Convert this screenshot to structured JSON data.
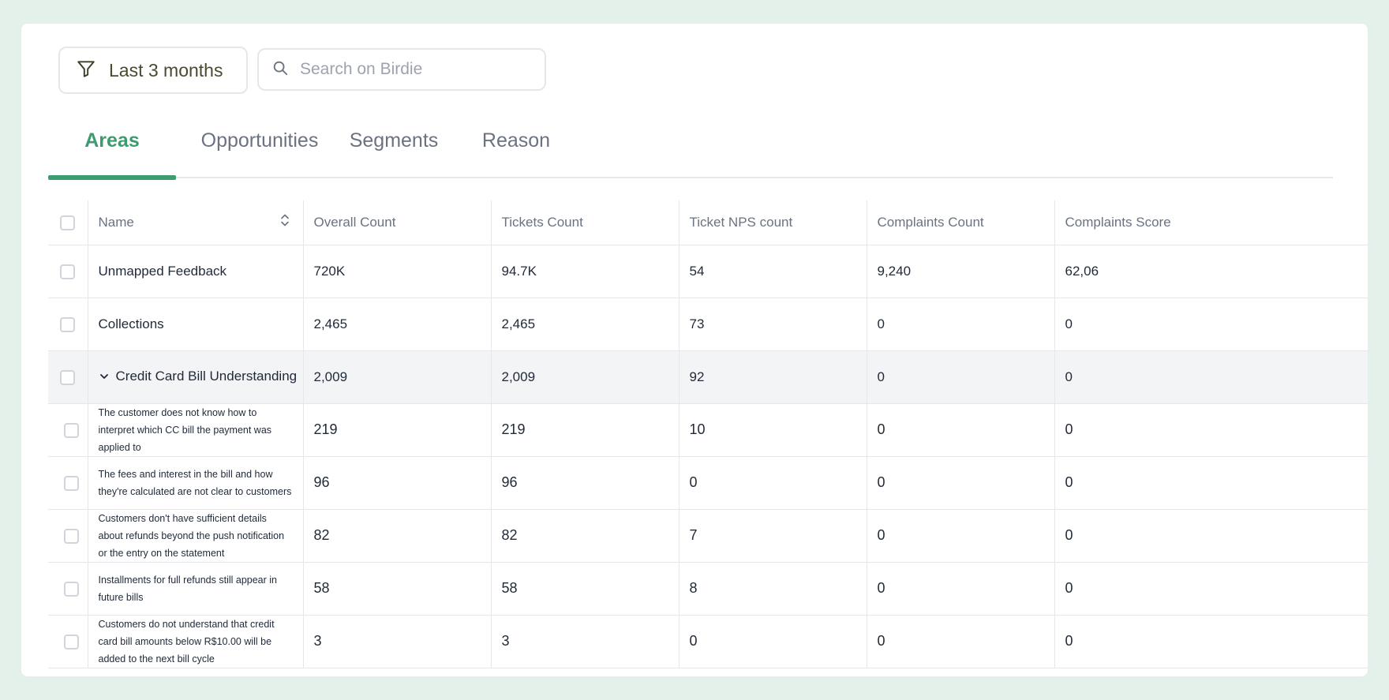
{
  "filter": {
    "label": "Last 3 months"
  },
  "search": {
    "placeholder": "Search on Birdie"
  },
  "tabs": [
    {
      "label": "Areas",
      "active": true
    },
    {
      "label": "Opportunities",
      "active": false
    },
    {
      "label": "Segments",
      "active": false
    },
    {
      "label": "Reason",
      "active": false
    }
  ],
  "colors": {
    "accent": "#3d9b70",
    "background": "#e3f1ea",
    "border": "#e5e7eb",
    "row_highlight": "#f3f4f6"
  },
  "table": {
    "headers": {
      "name": "Name",
      "overall": "Overall Count",
      "tickets": "Tickets Count",
      "nps": "Ticket NPS count",
      "complaints": "Complaints Count",
      "score": "Complaints Score"
    },
    "rows": [
      {
        "name": "Unmapped Feedback",
        "overall": "720K",
        "tickets": "94.7K",
        "nps": "54",
        "complaints": "9,240",
        "score": "62,06"
      },
      {
        "name": "Collections",
        "overall": "2,465",
        "tickets": "2,465",
        "nps": "73",
        "complaints": "0",
        "score": "0"
      },
      {
        "name": "Credit Card Bill Understanding",
        "overall": "2,009",
        "tickets": "2,009",
        "nps": "92",
        "complaints": "0",
        "score": "0"
      },
      {
        "name": "The customer does not know how to interpret which CC bill the payment was applied to",
        "overall": "219",
        "tickets": "219",
        "nps": "10",
        "complaints": "0",
        "score": "0"
      },
      {
        "name": "The fees and interest in the bill and how they're calculated are not clear to customers",
        "overall": "96",
        "tickets": "96",
        "nps": "0",
        "complaints": "0",
        "score": "0"
      },
      {
        "name": "Customers don't have sufficient details about refunds beyond the push notification or the entry on the statement",
        "overall": "82",
        "tickets": "82",
        "nps": "7",
        "complaints": "0",
        "score": "0"
      },
      {
        "name": "Installments for full refunds still appear in future bills",
        "overall": "58",
        "tickets": "58",
        "nps": "8",
        "complaints": "0",
        "score": "0"
      },
      {
        "name": "Customers do not understand that credit card bill amounts below R$10.00 will be added to the next bill cycle",
        "overall": "3",
        "tickets": "3",
        "nps": "0",
        "complaints": "0",
        "score": "0"
      }
    ]
  }
}
